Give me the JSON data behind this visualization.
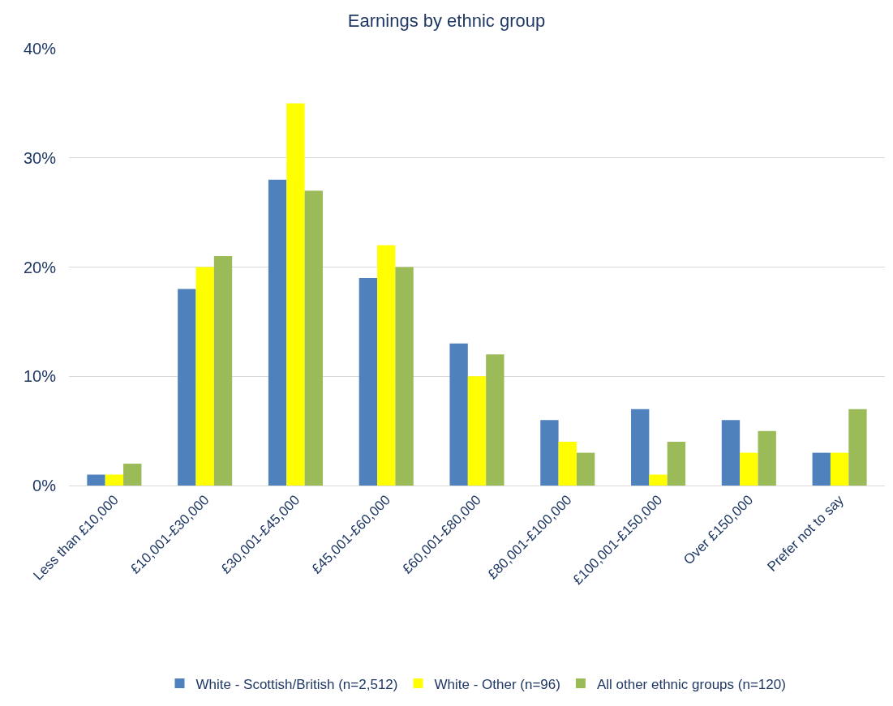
{
  "chart_data": {
    "type": "bar",
    "title": "Earnings by ethnic group",
    "categories": [
      "Less than £10,000",
      "£10,001-£30,000",
      "£30,001-£45,000",
      "£45,001-£60,000",
      "£60,001-£80,000",
      "£80,001-£100,000",
      "£100,001-£150,000",
      "Over £150,000",
      "Prefer not to say"
    ],
    "series": [
      {
        "name": "White - Scottish/British (n=2,512)",
        "color": "#4f81bd",
        "values": [
          1,
          18,
          28,
          19,
          13,
          6,
          7,
          6,
          3
        ]
      },
      {
        "name": "White - Other (n=96)",
        "color": "#ffff00",
        "values": [
          1,
          20,
          35,
          22,
          10,
          4,
          1,
          3,
          3
        ]
      },
      {
        "name": "All other ethnic groups (n=120)",
        "color": "#9bbb59",
        "values": [
          2,
          21,
          27,
          20,
          12,
          3,
          4,
          5,
          7
        ]
      }
    ],
    "ylim": [
      0,
      40
    ],
    "yticks": [
      {
        "value": 0,
        "label": "0%"
      },
      {
        "value": 10,
        "label": "10%"
      },
      {
        "value": 20,
        "label": "20%"
      },
      {
        "value": 30,
        "label": "30%"
      },
      {
        "value": 40,
        "label": "40%"
      }
    ],
    "grid": "y",
    "legend": "bottom"
  }
}
